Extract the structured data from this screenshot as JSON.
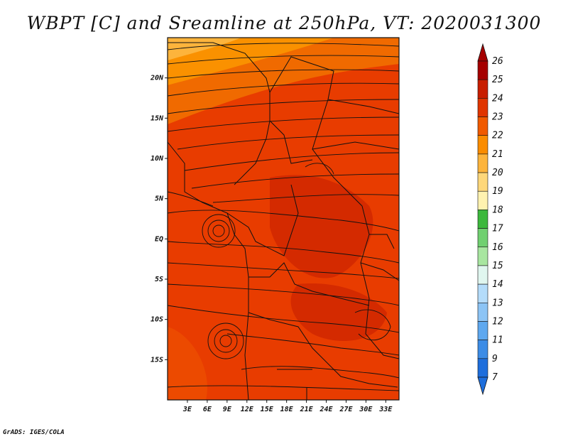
{
  "title": "WBPT [C] and Sreamline at 250hPa, VT: 2020031300",
  "credit": "GrADS: IGES/COLA",
  "map": {
    "lon_ticks": [
      "3E",
      "6E",
      "9E",
      "12E",
      "15E",
      "18E",
      "21E",
      "24E",
      "27E",
      "30E",
      "33E"
    ],
    "lat_ticks": [
      "20N",
      "15N",
      "10N",
      "5N",
      "EQ",
      "5S",
      "10S",
      "15S"
    ],
    "lon_range": [
      0,
      35
    ],
    "lat_range": [
      -20,
      25
    ]
  },
  "colorbar": {
    "labels": [
      "26",
      "25",
      "24",
      "23",
      "22",
      "21",
      "20",
      "19",
      "18",
      "17",
      "16",
      "15",
      "14",
      "13",
      "12",
      "11",
      "9",
      "7"
    ],
    "colors": [
      "#a50000",
      "#c81e00",
      "#e03500",
      "#f05a00",
      "#fa8c00",
      "#fdb43c",
      "#fed77a",
      "#fff2b0",
      "#3cb83c",
      "#70d070",
      "#a8e6a0",
      "#e0f6ef",
      "#b4dcfa",
      "#8cc4f5",
      "#5ea8ef",
      "#3c8ce6",
      "#1e6edc"
    ],
    "top_arrow_color": "#a50000",
    "bottom_arrow_color": "#1e6edc"
  }
}
